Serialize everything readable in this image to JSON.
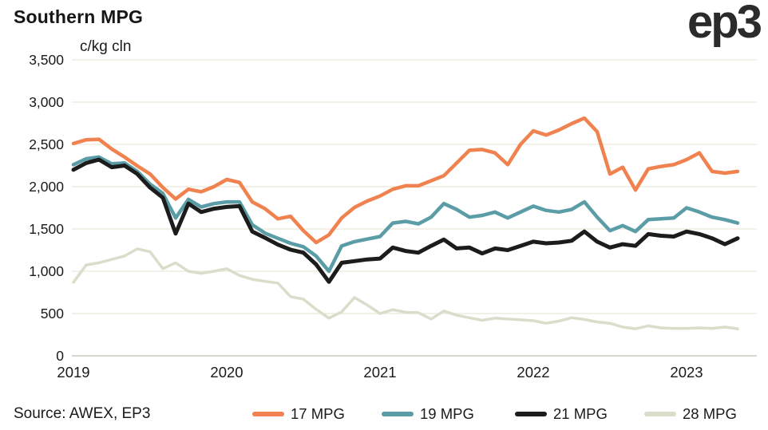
{
  "header": {
    "title": "Southern MPG",
    "logo_text": "ep3"
  },
  "footer": {
    "source": "Source: AWEX, EP3"
  },
  "chart_data": {
    "type": "line",
    "title": "Southern MPG",
    "unit_label": "c/kg cln",
    "grid": "horizontal",
    "legend_position": "bottom",
    "ylim": [
      0,
      3500
    ],
    "y_tick_step": 500,
    "y_tick_labels": [
      "0",
      "500",
      "1,000",
      "1,500",
      "2,000",
      "2,500",
      "3,000",
      "3,500"
    ],
    "x_tick_labels": [
      "2019",
      "2020",
      "2021",
      "2022",
      "2023"
    ],
    "x_start": "2019-01",
    "x_end": "2023-05",
    "x_interval": "monthly",
    "series": [
      {
        "name": "17 MPG",
        "color": "#F0824F",
        "values": [
          2510,
          2555,
          2560,
          2445,
          2350,
          2245,
          2150,
          1990,
          1855,
          1970,
          1940,
          2000,
          2085,
          2050,
          1820,
          1740,
          1620,
          1650,
          1480,
          1340,
          1430,
          1630,
          1755,
          1830,
          1890,
          1970,
          2010,
          2010,
          2070,
          2130,
          2280,
          2430,
          2440,
          2400,
          2260,
          2500,
          2660,
          2610,
          2670,
          2745,
          2810,
          2650,
          2150,
          2230,
          1960,
          2210,
          2240,
          2260,
          2320,
          2400,
          2180,
          2160,
          2180
        ]
      },
      {
        "name": "19 MPG",
        "color": "#5B9DA6",
        "values": [
          2260,
          2330,
          2350,
          2270,
          2280,
          2180,
          2030,
          1920,
          1630,
          1850,
          1760,
          1800,
          1820,
          1820,
          1550,
          1450,
          1390,
          1330,
          1290,
          1180,
          1000,
          1300,
          1350,
          1380,
          1410,
          1570,
          1590,
          1560,
          1640,
          1800,
          1730,
          1640,
          1660,
          1700,
          1630,
          1700,
          1770,
          1720,
          1700,
          1730,
          1820,
          1640,
          1480,
          1540,
          1470,
          1610,
          1620,
          1630,
          1750,
          1700,
          1640,
          1610,
          1570
        ]
      },
      {
        "name": "21 MPG",
        "color": "#1C1C1C",
        "values": [
          2200,
          2280,
          2320,
          2230,
          2250,
          2150,
          1990,
          1870,
          1445,
          1800,
          1700,
          1740,
          1760,
          1770,
          1470,
          1395,
          1315,
          1255,
          1220,
          1080,
          875,
          1100,
          1120,
          1140,
          1150,
          1280,
          1240,
          1220,
          1300,
          1375,
          1270,
          1280,
          1210,
          1270,
          1250,
          1300,
          1350,
          1330,
          1340,
          1360,
          1470,
          1350,
          1280,
          1320,
          1300,
          1440,
          1420,
          1410,
          1470,
          1440,
          1390,
          1320,
          1390
        ]
      },
      {
        "name": "28 MPG",
        "color": "#DBDDCB",
        "values": [
          870,
          1075,
          1100,
          1140,
          1180,
          1265,
          1230,
          1030,
          1100,
          1000,
          975,
          1000,
          1030,
          950,
          905,
          880,
          860,
          700,
          670,
          550,
          445,
          520,
          690,
          600,
          500,
          545,
          515,
          510,
          435,
          530,
          480,
          450,
          420,
          445,
          435,
          425,
          415,
          385,
          410,
          450,
          430,
          400,
          385,
          340,
          320,
          355,
          330,
          325,
          325,
          330,
          325,
          340,
          320
        ]
      }
    ],
    "colors": {
      "gridline": "#EDEBDF",
      "zero_line": "#D7D7D0",
      "text": "#1A1A1A",
      "background": "#FFFFFF"
    }
  }
}
